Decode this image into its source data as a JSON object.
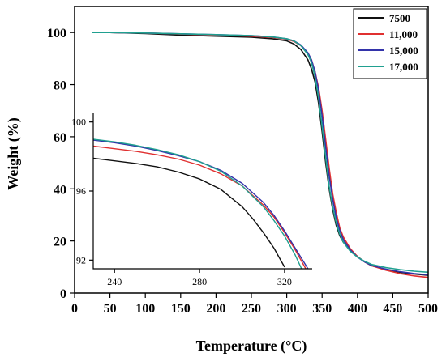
{
  "chart_data": [
    {
      "type": "line",
      "xlabel": "Temperature (°C)",
      "ylabel": "Weight (%)",
      "xlim": [
        0,
        500
      ],
      "ylim": [
        0,
        110
      ],
      "xticks": [
        0,
        50,
        100,
        150,
        200,
        250,
        300,
        350,
        400,
        450,
        500
      ],
      "yticks": [
        0,
        20,
        40,
        60,
        80,
        100
      ],
      "grid": false,
      "legend": "top-right",
      "series": [
        {
          "name": "7500",
          "color": "#111111",
          "x": [
            25,
            50,
            100,
            150,
            200,
            250,
            280,
            300,
            310,
            320,
            330,
            335,
            340,
            345,
            350,
            355,
            360,
            365,
            370,
            375,
            380,
            390,
            400,
            410,
            420,
            440,
            460,
            480,
            500
          ],
          "y": [
            100,
            100,
            99.6,
            99.0,
            98.6,
            98.2,
            97.6,
            96.8,
            95.6,
            93.5,
            89.5,
            86,
            81,
            73,
            62,
            50,
            40,
            32,
            26,
            22,
            19.5,
            16.5,
            14,
            12,
            10.5,
            9,
            8,
            7.3,
            6.8
          ]
        },
        {
          "name": "11,000",
          "color": "#e03030",
          "x": [
            25,
            50,
            100,
            150,
            200,
            250,
            280,
            300,
            310,
            320,
            330,
            335,
            340,
            345,
            350,
            355,
            360,
            365,
            370,
            375,
            380,
            390,
            400,
            410,
            420,
            440,
            460,
            480,
            500
          ],
          "y": [
            100,
            100,
            99.8,
            99.4,
            99.0,
            98.6,
            98.1,
            97.4,
            96.6,
            95.0,
            92.0,
            89.5,
            85,
            79,
            70,
            59,
            48,
            38,
            31,
            25,
            21.5,
            17,
            14,
            12,
            10.5,
            8.8,
            7.5,
            6.6,
            6.0
          ]
        },
        {
          "name": "15,000",
          "color": "#3333aa",
          "x": [
            25,
            50,
            100,
            150,
            200,
            250,
            280,
            300,
            310,
            320,
            330,
            335,
            340,
            345,
            350,
            355,
            360,
            365,
            370,
            375,
            380,
            390,
            400,
            410,
            420,
            440,
            460,
            480,
            500
          ],
          "y": [
            100,
            100,
            99.8,
            99.5,
            99.2,
            98.8,
            98.3,
            97.6,
            96.8,
            95.2,
            92.2,
            89.5,
            85,
            78,
            68,
            56,
            45,
            36,
            29,
            24,
            20.5,
            16.5,
            13.8,
            12,
            10.6,
            9.2,
            8.2,
            7.5,
            7.0
          ]
        },
        {
          "name": "17,000",
          "color": "#20a090",
          "x": [
            25,
            50,
            100,
            150,
            200,
            250,
            280,
            300,
            310,
            320,
            330,
            335,
            340,
            345,
            350,
            355,
            360,
            365,
            370,
            375,
            380,
            390,
            400,
            410,
            420,
            440,
            460,
            480,
            500
          ],
          "y": [
            100,
            100,
            99.8,
            99.5,
            99.2,
            98.8,
            98.3,
            97.6,
            96.8,
            95.0,
            91.5,
            88.5,
            83,
            75,
            64,
            52,
            41,
            33,
            27,
            22.5,
            19.5,
            16,
            13.8,
            12.2,
            11,
            9.8,
            9.0,
            8.4,
            8.0
          ]
        }
      ]
    },
    {
      "type": "line",
      "xlim": [
        230,
        333
      ],
      "ylim": [
        91.5,
        100.5
      ],
      "xticks": [
        240,
        280,
        320
      ],
      "yticks": [
        92,
        96,
        100
      ],
      "grid": false,
      "series": [
        {
          "name": "7500",
          "color": "#111111",
          "x": [
            230,
            240,
            250,
            260,
            270,
            280,
            290,
            300,
            305,
            310,
            315,
            320
          ],
          "y": [
            97.9,
            97.75,
            97.6,
            97.4,
            97.1,
            96.7,
            96.1,
            95.1,
            94.4,
            93.6,
            92.7,
            91.6
          ]
        },
        {
          "name": "11,000",
          "color": "#e03030",
          "x": [
            230,
            240,
            250,
            260,
            270,
            280,
            290,
            300,
            310,
            315,
            320,
            325,
            330
          ],
          "y": [
            98.6,
            98.45,
            98.3,
            98.1,
            97.85,
            97.5,
            97.0,
            96.3,
            95.2,
            94.5,
            93.6,
            92.6,
            91.5
          ]
        },
        {
          "name": "15,000",
          "color": "#3333aa",
          "x": [
            230,
            240,
            250,
            260,
            270,
            280,
            290,
            300,
            310,
            315,
            320,
            325,
            331
          ],
          "y": [
            98.95,
            98.8,
            98.6,
            98.35,
            98.05,
            97.7,
            97.2,
            96.45,
            95.35,
            94.6,
            93.7,
            92.7,
            91.5
          ]
        },
        {
          "name": "17,000",
          "color": "#20a090",
          "x": [
            230,
            240,
            250,
            260,
            270,
            280,
            290,
            300,
            310,
            315,
            320,
            325,
            328
          ],
          "y": [
            99.0,
            98.85,
            98.65,
            98.4,
            98.1,
            97.7,
            97.15,
            96.3,
            95.1,
            94.3,
            93.4,
            92.3,
            91.5
          ]
        }
      ]
    }
  ]
}
